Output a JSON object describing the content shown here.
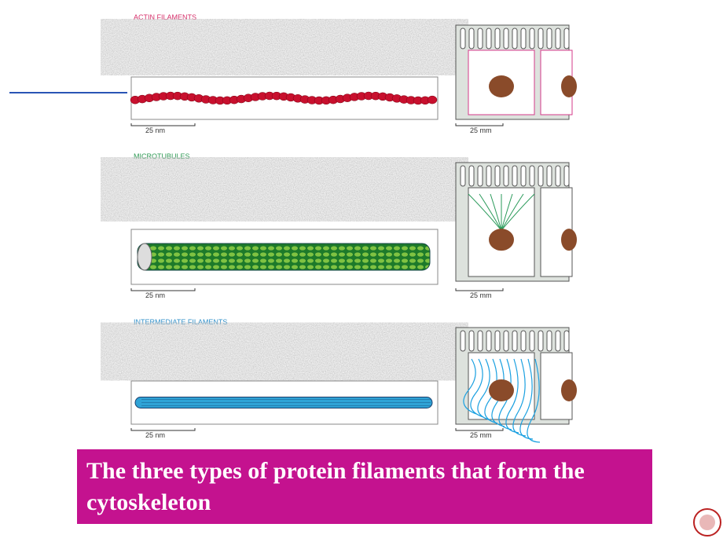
{
  "panels": [
    {
      "title": "ACTIN FILAMENTS",
      "scale_nm": "25 nm",
      "scale_mm": "25 mm"
    },
    {
      "title": "MICROTUBULES",
      "scale_nm": "25 nm",
      "scale_mm": "25 mm"
    },
    {
      "title": "INTERMEDIATE FILAMENTS",
      "scale_nm": "25 nm",
      "scale_mm": "25 mm"
    }
  ],
  "caption": "The three types of protein filaments that form the cytoskeleton"
}
